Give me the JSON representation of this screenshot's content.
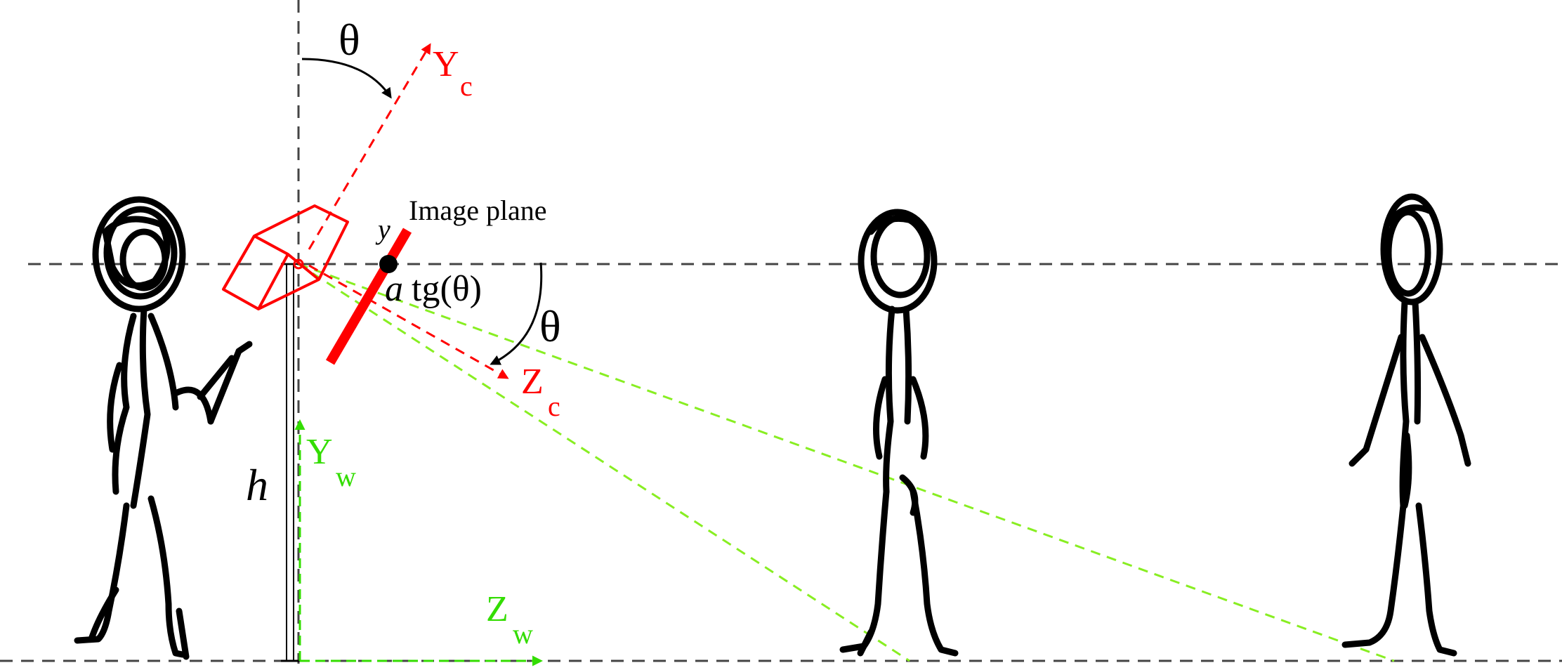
{
  "labels": {
    "theta_top": "θ",
    "yc_main": "Y",
    "yc_sub": "c",
    "image_plane": "Image plane",
    "y_point": "y",
    "a_var": "a",
    "tg_theta": "tg(θ)",
    "theta_right": "θ",
    "zc_main": "Z",
    "zc_sub": "c",
    "h_height": "h",
    "yw_main": "Y",
    "yw_sub": "w",
    "zw_main": "Z",
    "zw_sub": "w"
  },
  "colors": {
    "camera": "#ff0000",
    "world_axes": "#33dd00",
    "sight_lines": "#88ee22",
    "guides": "#444444",
    "ink": "#000000"
  },
  "icons": {
    "camera": "camera-icon",
    "person": "stick-figure-icon"
  }
}
